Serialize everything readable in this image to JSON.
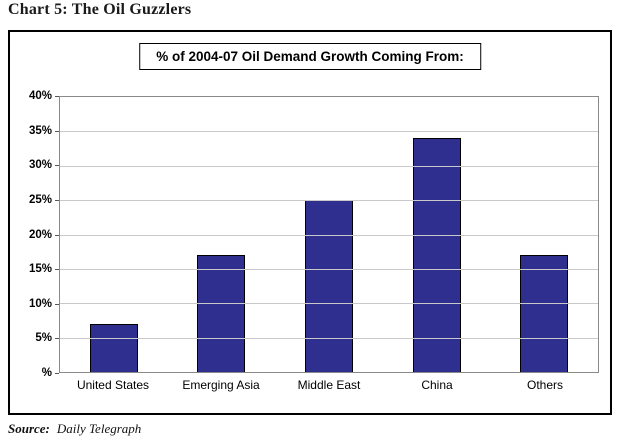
{
  "page": {
    "title": "Chart 5: The Oil Guzzlers",
    "source_label": "Source:",
    "source_value": "Daily Telegraph"
  },
  "chart_data": {
    "type": "bar",
    "title": "% of 2004-07 Oil Demand Growth Coming From:",
    "categories": [
      "United States",
      "Emerging Asia",
      "Middle East",
      "China",
      "Others"
    ],
    "values": [
      7,
      17,
      25,
      34,
      17
    ],
    "ylim": [
      0,
      40
    ],
    "yticks": [
      {
        "label": "%",
        "value": 0
      },
      {
        "label": "5%",
        "value": 5
      },
      {
        "label": "10%",
        "value": 10
      },
      {
        "label": "15%",
        "value": 15
      },
      {
        "label": "20%",
        "value": 20
      },
      {
        "label": "25%",
        "value": 25
      },
      {
        "label": "30%",
        "value": 30
      },
      {
        "label": "35%",
        "value": 35
      },
      {
        "label": "40%",
        "value": 40
      }
    ],
    "bar_color": "#2f2f8f",
    "bar_border_color": "#000000",
    "grid": true,
    "legend": false
  }
}
